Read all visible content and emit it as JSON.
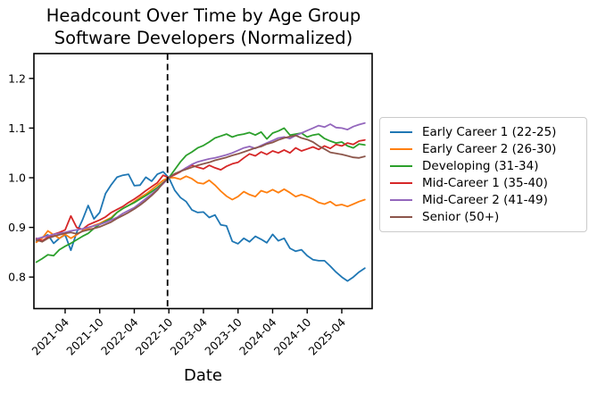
{
  "chart_data": {
    "type": "line",
    "title": "Headcount Over Time by Age Group",
    "subtitle": "Software Developers (Normalized)",
    "xlabel": "Date",
    "ylabel": "",
    "grid": false,
    "legend_position": "right",
    "ylim": [
      0.736,
      1.25
    ],
    "ytick_labels": [
      "0.8",
      "0.9",
      "1.0",
      "1.1",
      "1.2"
    ],
    "xtick_labels": [
      "2021-04",
      "2021-10",
      "2022-04",
      "2022-10",
      "2023-04",
      "2023-10",
      "2024-04",
      "2024-10",
      "2025-04"
    ],
    "vline": {
      "x": "2022-10",
      "style": "dashed",
      "color": "#000000"
    },
    "x": [
      "2020-11",
      "2020-12",
      "2021-01",
      "2021-02",
      "2021-03",
      "2021-04",
      "2021-05",
      "2021-06",
      "2021-07",
      "2021-08",
      "2021-09",
      "2021-10",
      "2021-11",
      "2021-12",
      "2022-01",
      "2022-02",
      "2022-03",
      "2022-04",
      "2022-05",
      "2022-06",
      "2022-07",
      "2022-08",
      "2022-09",
      "2022-10",
      "2022-11",
      "2022-12",
      "2023-01",
      "2023-02",
      "2023-03",
      "2023-04",
      "2023-05",
      "2023-06",
      "2023-07",
      "2023-08",
      "2023-09",
      "2023-10",
      "2023-11",
      "2023-12",
      "2024-01",
      "2024-02",
      "2024-03",
      "2024-04",
      "2024-05",
      "2024-06",
      "2024-07",
      "2024-08",
      "2024-09",
      "2024-10",
      "2024-11",
      "2024-12",
      "2025-01",
      "2025-02",
      "2025-03",
      "2025-04",
      "2025-05",
      "2025-06",
      "2025-07",
      "2025-08"
    ],
    "series": [
      {
        "name": "Early Career 1 (22-25)",
        "color": "#1f77b4",
        "values": [
          0.872,
          0.88,
          0.885,
          0.868,
          0.878,
          0.885,
          0.854,
          0.89,
          0.915,
          0.944,
          0.917,
          0.93,
          0.968,
          0.986,
          1.001,
          1.005,
          1.007,
          0.984,
          0.985,
          1.001,
          0.993,
          1.007,
          1.012,
          1.0,
          0.975,
          0.96,
          0.952,
          0.935,
          0.93,
          0.931,
          0.92,
          0.925,
          0.905,
          0.903,
          0.872,
          0.867,
          0.878,
          0.871,
          0.882,
          0.876,
          0.869,
          0.886,
          0.873,
          0.878,
          0.858,
          0.852,
          0.855,
          0.843,
          0.835,
          0.833,
          0.833,
          0.822,
          0.81,
          0.8,
          0.792,
          0.8,
          0.81,
          0.818
        ]
      },
      {
        "name": "Early Career 2 (26-30)",
        "color": "#ff7f0e",
        "values": [
          0.87,
          0.878,
          0.893,
          0.885,
          0.878,
          0.886,
          0.878,
          0.885,
          0.893,
          0.898,
          0.904,
          0.908,
          0.914,
          0.92,
          0.93,
          0.938,
          0.944,
          0.952,
          0.96,
          0.967,
          0.976,
          0.985,
          0.995,
          1.0,
          1.0,
          0.997,
          1.003,
          0.998,
          0.99,
          0.988,
          0.995,
          0.985,
          0.973,
          0.963,
          0.956,
          0.962,
          0.972,
          0.966,
          0.962,
          0.974,
          0.97,
          0.976,
          0.97,
          0.977,
          0.97,
          0.962,
          0.966,
          0.962,
          0.957,
          0.95,
          0.947,
          0.952,
          0.944,
          0.946,
          0.942,
          0.947,
          0.952,
          0.956
        ]
      },
      {
        "name": "Developing (31-34)",
        "color": "#2ca02c",
        "values": [
          0.83,
          0.837,
          0.845,
          0.843,
          0.855,
          0.862,
          0.868,
          0.875,
          0.882,
          0.888,
          0.898,
          0.906,
          0.912,
          0.918,
          0.93,
          0.938,
          0.944,
          0.95,
          0.957,
          0.964,
          0.972,
          0.98,
          0.99,
          1.0,
          1.016,
          1.032,
          1.045,
          1.052,
          1.06,
          1.065,
          1.072,
          1.08,
          1.084,
          1.088,
          1.082,
          1.086,
          1.088,
          1.091,
          1.086,
          1.092,
          1.078,
          1.09,
          1.094,
          1.1,
          1.086,
          1.088,
          1.09,
          1.082,
          1.086,
          1.088,
          1.079,
          1.074,
          1.07,
          1.072,
          1.064,
          1.06,
          1.068,
          1.066
        ]
      },
      {
        "name": "Mid-Career 1 (35-40)",
        "color": "#d62728",
        "values": [
          0.878,
          0.873,
          0.88,
          0.886,
          0.89,
          0.895,
          0.923,
          0.9,
          0.896,
          0.905,
          0.91,
          0.915,
          0.921,
          0.93,
          0.936,
          0.942,
          0.95,
          0.957,
          0.965,
          0.974,
          0.982,
          0.99,
          1.005,
          1.0,
          1.006,
          1.012,
          1.02,
          1.025,
          1.021,
          1.018,
          1.025,
          1.02,
          1.016,
          1.023,
          1.028,
          1.031,
          1.04,
          1.048,
          1.044,
          1.052,
          1.047,
          1.054,
          1.05,
          1.056,
          1.05,
          1.06,
          1.054,
          1.058,
          1.062,
          1.057,
          1.064,
          1.059,
          1.067,
          1.064,
          1.07,
          1.067,
          1.074,
          1.076
        ]
      },
      {
        "name": "Mid-Career 2 (41-49)",
        "color": "#9467bd",
        "values": [
          0.877,
          0.88,
          0.883,
          0.886,
          0.888,
          0.89,
          0.893,
          0.895,
          0.897,
          0.9,
          0.903,
          0.906,
          0.91,
          0.915,
          0.92,
          0.928,
          0.934,
          0.94,
          0.949,
          0.958,
          0.967,
          0.977,
          0.988,
          1.0,
          1.008,
          1.013,
          1.02,
          1.027,
          1.032,
          1.035,
          1.038,
          1.04,
          1.043,
          1.046,
          1.05,
          1.055,
          1.06,
          1.063,
          1.059,
          1.065,
          1.07,
          1.075,
          1.08,
          1.082,
          1.079,
          1.085,
          1.09,
          1.095,
          1.1,
          1.105,
          1.102,
          1.108,
          1.101,
          1.1,
          1.097,
          1.103,
          1.107,
          1.11
        ]
      },
      {
        "name": "Senior (50+)",
        "color": "#8c564b",
        "values": [
          0.875,
          0.871,
          0.878,
          0.882,
          0.885,
          0.888,
          0.89,
          0.887,
          0.892,
          0.895,
          0.898,
          0.901,
          0.906,
          0.911,
          0.918,
          0.924,
          0.93,
          0.937,
          0.945,
          0.954,
          0.964,
          0.975,
          0.99,
          1.0,
          1.008,
          1.013,
          1.017,
          1.021,
          1.025,
          1.028,
          1.031,
          1.035,
          1.038,
          1.041,
          1.045,
          1.048,
          1.052,
          1.056,
          1.06,
          1.063,
          1.068,
          1.071,
          1.076,
          1.08,
          1.083,
          1.085,
          1.08,
          1.077,
          1.072,
          1.064,
          1.058,
          1.051,
          1.049,
          1.047,
          1.044,
          1.041,
          1.04,
          1.043
        ]
      }
    ]
  }
}
